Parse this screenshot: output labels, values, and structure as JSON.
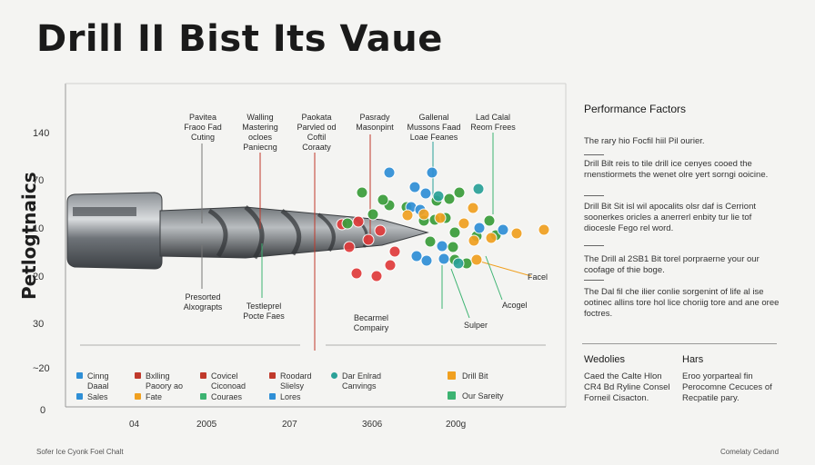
{
  "title": "Drill II Bist Its Vaue",
  "chart_data": {
    "type": "scatter",
    "title": "Drill II Bist Its Vaue",
    "ylabel": "Petlogtnaics",
    "yticks": [
      "140",
      "70",
      "10",
      "20",
      "30",
      "~20",
      "0"
    ],
    "xticks": [
      "04",
      "2005",
      "207",
      "3606",
      "200g"
    ],
    "annotations_top": [
      {
        "text": "Pavitea\nFraoo Fad\nCuting",
        "color": "#333333"
      },
      {
        "text": "Walling\nMastering\nocloes\nPaniecng",
        "color": "#c0392b"
      },
      {
        "text": "Paokata\nParvled od\nCoftil\nCoraaty",
        "color": "#c0392b"
      },
      {
        "text": "Pasrady\nMasonpint",
        "color": "#c0392b"
      },
      {
        "text": "Gallenal\nMussons Faad\nLoae Feanes",
        "color": "#2aa198"
      },
      {
        "text": "Lad Calal\nReom Frees",
        "color": "#3cb371"
      }
    ],
    "annotations_bottom": [
      {
        "text": "Presorted\nAlxograpts",
        "color": "#333333"
      },
      {
        "text": "Testleprel\nPocte Faes",
        "color": "#3cb371"
      },
      {
        "text": "Becarmel\nCompairy",
        "color": "#c0392b"
      }
    ],
    "right_labels": [
      "Facel",
      "Acogel",
      "Sulper"
    ],
    "legend": [
      {
        "label": "Cinng\nDaaal",
        "color": "#2f8fd6"
      },
      {
        "label": "Sales",
        "color": "#2f8fd6"
      },
      {
        "label": "Bxlling\nPaoory ao",
        "color": "#c0392b"
      },
      {
        "label": "Fate",
        "color": "#f0a020"
      },
      {
        "label": "Covicel\nCiconoad",
        "color": "#c0392b"
      },
      {
        "label": "Couraes",
        "color": "#3cb371"
      },
      {
        "label": "Roodard\nSlielsy",
        "color": "#c0392b"
      },
      {
        "label": "Lores",
        "color": "#2f8fd6"
      },
      {
        "label": "Dar Enlrad\nCanvings",
        "color": "#2aa198"
      },
      {
        "label": "Drill Bit",
        "color": "#f0a020"
      },
      {
        "label": "Our Sareity",
        "color": "#3cb371"
      }
    ],
    "series": [
      {
        "color": "#e03b3b",
        "points": [
          [
            376,
            247
          ],
          [
            394,
            244
          ],
          [
            384,
            272
          ],
          [
            392,
            301
          ],
          [
            414,
            304
          ],
          [
            429,
            292
          ],
          [
            434,
            277
          ],
          [
            405,
            264
          ],
          [
            418,
            254
          ]
        ]
      },
      {
        "color": "#3a9d3a",
        "points": [
          [
            382,
            246
          ],
          [
            398,
            212
          ],
          [
            410,
            236
          ],
          [
            428,
            226
          ],
          [
            447,
            228
          ],
          [
            480,
            221
          ],
          [
            494,
            219
          ],
          [
            505,
            212
          ],
          [
            478,
            242
          ],
          [
            490,
            240
          ],
          [
            500,
            256
          ],
          [
            538,
            243
          ],
          [
            545,
            259
          ],
          [
            498,
            272
          ],
          [
            500,
            286
          ],
          [
            513,
            290
          ],
          [
            524,
            260
          ],
          [
            473,
            266
          ],
          [
            421,
            220
          ],
          [
            466,
            243
          ]
        ]
      },
      {
        "color": "#2f8fd6",
        "points": [
          [
            428,
            190
          ],
          [
            456,
            206
          ],
          [
            468,
            213
          ],
          [
            475,
            190
          ],
          [
            458,
            282
          ],
          [
            469,
            287
          ],
          [
            486,
            271
          ],
          [
            527,
            251
          ],
          [
            553,
            253
          ],
          [
            488,
            285
          ],
          [
            452,
            228
          ],
          [
            462,
            231
          ]
        ]
      },
      {
        "color": "#f0a020",
        "points": [
          [
            448,
            237
          ],
          [
            466,
            236
          ],
          [
            484,
            240
          ],
          [
            510,
            246
          ],
          [
            520,
            229
          ],
          [
            521,
            265
          ],
          [
            540,
            262
          ],
          [
            568,
            257
          ],
          [
            598,
            253
          ],
          [
            524,
            286
          ]
        ]
      },
      {
        "color": "#2aa198",
        "points": [
          [
            482,
            216
          ],
          [
            504,
            290
          ],
          [
            526,
            208
          ]
        ]
      }
    ]
  },
  "panel": {
    "title": "Performance Factors",
    "p1": "The rary hio Focfil hiil Pil ourier.",
    "p2": "Drill Bilt reis to tile drill ice cenyes cooed the rnenstiormets the wenet olre yert sorngi ooicine.",
    "p3": "Drill Bit Sit isl wil apocalits olsr daf is Cerriont soonerkes oricles a anerrerl enbity tur lie tof diocesle Fego rel word.",
    "p4": "The Drill al 2SB1 Bit torel porpraerne your our coofage of thie boge.",
    "p5": "The Dal fil che ilier conlie sorgenint of life al ise ootinec allins tore hol lice choriig tore and ane oree foctres."
  },
  "bottom_cols": {
    "h1": "Wedolies",
    "t1": "Caed the Calte Hlon\nCR4 Bd Ryline Consel\nForneil Cisacton.",
    "h2": "Hars",
    "t2": "Eroo yorparteal fin\nPerocomne Cecuces of\nRecpatile pary."
  },
  "footer": {
    "left": "Sofer Ice Cyonk Foel Chalt",
    "right": "Comelaty Cedand"
  }
}
